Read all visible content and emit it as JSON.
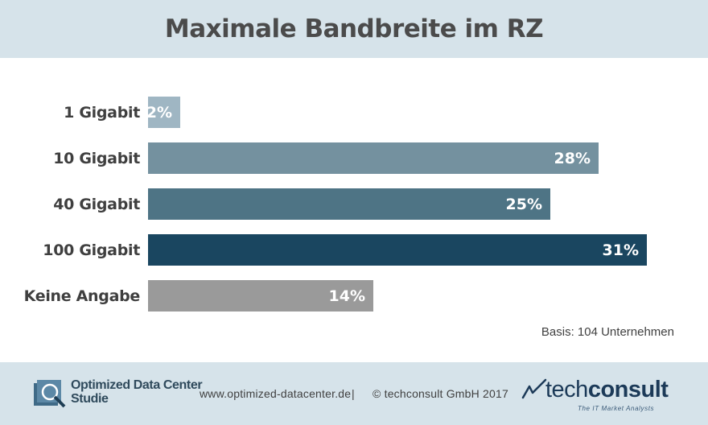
{
  "chart_data": {
    "type": "bar",
    "orientation": "horizontal",
    "title": "Maximale Bandbreite im RZ",
    "categories": [
      "1 Gigabit",
      "10 Gigabit",
      "40 Gigabit",
      "100 Gigabit",
      "Keine Angabe"
    ],
    "values": [
      2,
      28,
      25,
      31,
      14
    ],
    "value_labels": [
      "2%",
      "28%",
      "25%",
      "31%",
      "14%"
    ],
    "colors": [
      "#9fb6c3",
      "#74919f",
      "#4e7485",
      "#1a4660",
      "#9a9a9a"
    ],
    "unit": "%",
    "xlim": [
      0,
      35
    ],
    "grid": false,
    "legend": "none",
    "note": "Basis: 104 Unternehmen"
  },
  "footer": {
    "logo_text_line1": "Optimized Data Center",
    "logo_text_line2": "Studie",
    "website": "www.optimized-datacenter.de",
    "separator": "|",
    "copyright": "© techconsult GmbH 2017",
    "brand_light": "tech",
    "brand_bold": "consult",
    "brand_tagline": "The IT Market Analysts"
  }
}
